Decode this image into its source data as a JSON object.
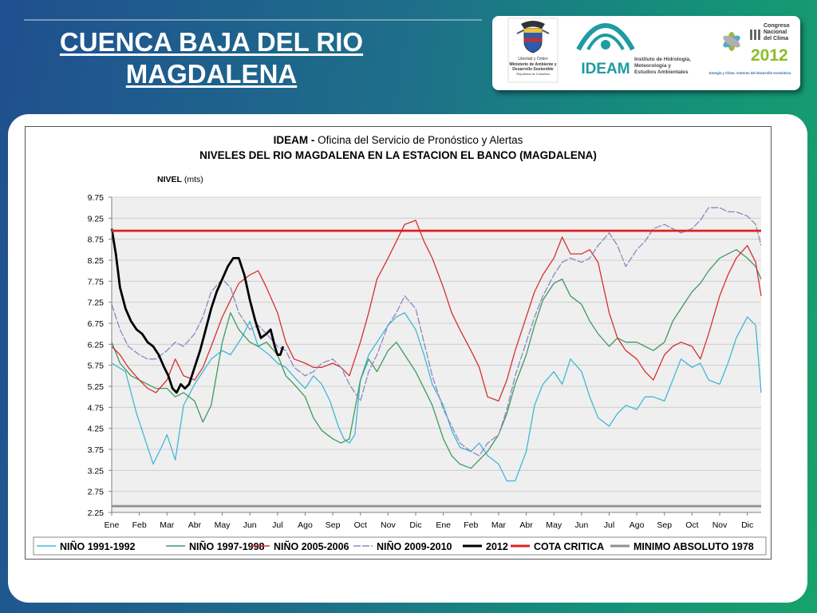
{
  "slide": {
    "title_line1": "CUENCA  BAJA  DEL RIO",
    "title_line2": "MAGDALENA"
  },
  "logos": {
    "colombia_caption": [
      "Libertad y Orden",
      "Ministerio de Ambiente y",
      "Desarrollo Sostenible",
      "República de Colombia"
    ],
    "ideam_word": "IDEAM",
    "ideam_caption": [
      "Instituto de Hidrología,",
      "Meteorología y",
      "Estudios Ambientales"
    ],
    "congress_title": [
      "Congreso",
      "Nacional",
      "del Clima"
    ],
    "congress_roman": "III",
    "congress_year": "2012",
    "congress_tagline": "Energía y Clima: motores del desarrollo económico"
  },
  "chart_data": {
    "type": "line",
    "title_bold": "IDEAM - ",
    "title_rest": "Oficina del Servicio de Pronóstico y Alertas",
    "subtitle": "NIVELES DEL RIO MAGDALENA EN LA ESTACION EL BANCO (MAGDALENA)",
    "ylabel_bold": "NIVEL",
    "ylabel_unit": " (mts)",
    "xlabel": "",
    "ylim": [
      2.25,
      9.75
    ],
    "yticks": [
      "9.75",
      "9.25",
      "8.75",
      "8.25",
      "7.75",
      "7.25",
      "6.75",
      "6.25",
      "5.75",
      "5.25",
      "4.75",
      "4.25",
      "3.75",
      "3.25",
      "2.75",
      "2.25"
    ],
    "x_unit": "month index (0 = Ene, year 1; 23 = Dic, year 2)",
    "xlim": [
      0,
      23.5
    ],
    "categories": [
      "Ene",
      "Feb",
      "Mar",
      "Abr",
      "May",
      "Jun",
      "Jul",
      "Ago",
      "Sep",
      "Oct",
      "Nov",
      "Dic",
      "Ene",
      "Feb",
      "Mar",
      "Abr",
      "May",
      "Jun",
      "Jul",
      "Ago",
      "Sep",
      "Oct",
      "Nov",
      "Dic"
    ],
    "grid": true,
    "legend_position": "bottom",
    "series": [
      {
        "name": "NIÑO 1991-1992",
        "color": "#3fb8d6",
        "width": 1.3,
        "dash": "",
        "x": [
          0,
          0.5,
          0.9,
          1.2,
          1.5,
          1.8,
          2.0,
          2.3,
          2.6,
          3.0,
          3.3,
          3.6,
          4.0,
          4.3,
          4.7,
          5.0,
          5.3,
          5.7,
          6.0,
          6.3,
          6.7,
          7.0,
          7.3,
          7.6,
          7.9,
          8.2,
          8.4,
          8.6,
          8.8,
          9.0,
          9.3,
          9.6,
          10.0,
          10.3,
          10.6,
          11.0,
          11.3,
          11.6,
          12.0,
          12.3,
          12.6,
          13.0,
          13.3,
          13.6,
          14.0,
          14.3,
          14.6,
          15.0,
          15.3,
          15.6,
          16.0,
          16.3,
          16.6,
          17.0,
          17.3,
          17.6,
          18.0,
          18.3,
          18.6,
          19.0,
          19.3,
          19.6,
          20.0,
          20.3,
          20.6,
          21.0,
          21.3,
          21.6,
          22.0,
          22.3,
          22.6,
          23.0,
          23.3,
          23.5
        ],
        "y": [
          5.8,
          5.6,
          4.6,
          4.0,
          3.4,
          3.8,
          4.1,
          3.5,
          4.8,
          5.3,
          5.6,
          5.9,
          6.1,
          6.0,
          6.4,
          6.8,
          6.2,
          6.0,
          5.8,
          5.7,
          5.4,
          5.2,
          5.5,
          5.3,
          4.9,
          4.3,
          4.0,
          3.9,
          4.1,
          5.4,
          6.0,
          6.3,
          6.7,
          6.9,
          7.0,
          6.6,
          6.0,
          5.3,
          4.8,
          4.2,
          3.8,
          3.7,
          3.9,
          3.6,
          3.4,
          3.0,
          3.0,
          3.7,
          4.8,
          5.3,
          5.6,
          5.3,
          5.9,
          5.6,
          5.0,
          4.5,
          4.3,
          4.6,
          4.8,
          4.7,
          5.0,
          5.0,
          4.9,
          5.4,
          5.9,
          5.7,
          5.8,
          5.4,
          5.3,
          5.8,
          6.4,
          6.9,
          6.7,
          5.1
        ]
      },
      {
        "name": "NIÑO 1997-1998",
        "color": "#3e9a62",
        "width": 1.3,
        "dash": "",
        "x": [
          0,
          0.3,
          0.7,
          1.0,
          1.3,
          1.6,
          2.0,
          2.3,
          2.6,
          3.0,
          3.3,
          3.6,
          4.0,
          4.3,
          4.6,
          5.0,
          5.3,
          5.6,
          6.0,
          6.3,
          6.6,
          7.0,
          7.3,
          7.6,
          8.0,
          8.3,
          8.6,
          9.0,
          9.3,
          9.6,
          10.0,
          10.3,
          10.6,
          11.0,
          11.3,
          11.6,
          12.0,
          12.3,
          12.6,
          13.0,
          13.3,
          13.6,
          14.0,
          14.3,
          14.6,
          15.0,
          15.3,
          15.6,
          16.0,
          16.3,
          16.6,
          17.0,
          17.3,
          17.6,
          18.0,
          18.3,
          18.6,
          19.0,
          19.3,
          19.6,
          20.0,
          20.3,
          20.6,
          21.0,
          21.3,
          21.6,
          22.0,
          22.3,
          22.6,
          23.0,
          23.3,
          23.5
        ],
        "y": [
          6.3,
          5.8,
          5.5,
          5.4,
          5.3,
          5.2,
          5.2,
          5.0,
          5.1,
          4.9,
          4.4,
          4.8,
          6.3,
          7.0,
          6.6,
          6.3,
          6.2,
          6.3,
          6.0,
          5.5,
          5.3,
          5.0,
          4.5,
          4.2,
          4.0,
          3.9,
          4.0,
          5.4,
          5.9,
          5.6,
          6.1,
          6.3,
          6.0,
          5.6,
          5.2,
          4.8,
          4.0,
          3.6,
          3.4,
          3.3,
          3.5,
          3.7,
          4.1,
          4.6,
          5.3,
          6.0,
          6.7,
          7.3,
          7.7,
          7.8,
          7.4,
          7.2,
          6.8,
          6.5,
          6.2,
          6.4,
          6.3,
          6.3,
          6.2,
          6.1,
          6.3,
          6.8,
          7.1,
          7.5,
          7.7,
          8.0,
          8.3,
          8.4,
          8.5,
          8.3,
          8.1,
          7.8
        ]
      },
      {
        "name": "NIÑO 2005-2006",
        "color": "#d63030",
        "width": 1.3,
        "dash": "",
        "x": [
          0,
          0.3,
          0.6,
          1.0,
          1.3,
          1.6,
          2.0,
          2.3,
          2.6,
          3.0,
          3.3,
          3.6,
          4.0,
          4.3,
          4.6,
          5.0,
          5.3,
          5.6,
          6.0,
          6.3,
          6.6,
          7.0,
          7.3,
          7.6,
          8.0,
          8.3,
          8.6,
          9.0,
          9.3,
          9.6,
          10.0,
          10.3,
          10.6,
          11.0,
          11.3,
          11.6,
          12.0,
          12.3,
          12.6,
          13.0,
          13.3,
          13.6,
          14.0,
          14.3,
          14.6,
          15.0,
          15.3,
          15.6,
          16.0,
          16.3,
          16.6,
          17.0,
          17.3,
          17.6,
          18.0,
          18.3,
          18.6,
          19.0,
          19.3,
          19.6,
          20.0,
          20.3,
          20.6,
          21.0,
          21.3,
          21.6,
          22.0,
          22.3,
          22.6,
          23.0,
          23.3,
          23.5
        ],
        "y": [
          6.2,
          6.0,
          5.7,
          5.4,
          5.2,
          5.1,
          5.4,
          5.9,
          5.5,
          5.4,
          5.7,
          6.2,
          6.9,
          7.3,
          7.7,
          7.9,
          8.0,
          7.6,
          7.0,
          6.3,
          5.9,
          5.8,
          5.7,
          5.7,
          5.8,
          5.7,
          5.5,
          6.3,
          7.0,
          7.8,
          8.3,
          8.7,
          9.1,
          9.2,
          8.7,
          8.3,
          7.6,
          7.0,
          6.6,
          6.1,
          5.7,
          5.0,
          4.9,
          5.4,
          6.1,
          6.9,
          7.5,
          7.9,
          8.3,
          8.8,
          8.4,
          8.4,
          8.5,
          8.2,
          7.0,
          6.4,
          6.1,
          5.9,
          5.6,
          5.4,
          6.0,
          6.2,
          6.3,
          6.2,
          5.9,
          6.5,
          7.4,
          7.9,
          8.3,
          8.6,
          8.2,
          7.4
        ]
      },
      {
        "name": "NIÑO 2009-2010",
        "color": "#8a88c2",
        "width": 1.3,
        "dash": "9,2",
        "x": [
          0,
          0.3,
          0.6,
          1.0,
          1.3,
          1.6,
          2.0,
          2.3,
          2.6,
          3.0,
          3.3,
          3.6,
          4.0,
          4.3,
          4.6,
          5.0,
          5.3,
          5.6,
          6.0,
          6.3,
          6.6,
          7.0,
          7.3,
          7.6,
          8.0,
          8.3,
          8.6,
          9.0,
          9.3,
          9.6,
          10.0,
          10.3,
          10.6,
          11.0,
          11.3,
          11.6,
          12.0,
          12.3,
          12.6,
          13.0,
          13.3,
          13.6,
          14.0,
          14.3,
          14.6,
          15.0,
          15.3,
          15.6,
          16.0,
          16.3,
          16.6,
          17.0,
          17.3,
          17.6,
          18.0,
          18.3,
          18.6,
          19.0,
          19.3,
          19.6,
          20.0,
          20.3,
          20.6,
          21.0,
          21.3,
          21.6,
          22.0,
          22.3,
          22.6,
          23.0,
          23.3,
          23.5
        ],
        "y": [
          7.2,
          6.6,
          6.2,
          6.0,
          5.9,
          5.9,
          6.1,
          6.3,
          6.2,
          6.5,
          6.9,
          7.5,
          7.8,
          7.6,
          7.0,
          6.6,
          6.7,
          6.5,
          6.2,
          6.1,
          5.7,
          5.5,
          5.6,
          5.8,
          5.9,
          5.7,
          5.3,
          4.9,
          5.6,
          6.0,
          6.7,
          7.0,
          7.4,
          7.1,
          6.3,
          5.5,
          4.7,
          4.3,
          3.9,
          3.7,
          3.6,
          3.9,
          4.1,
          4.7,
          5.5,
          6.3,
          6.9,
          7.4,
          7.9,
          8.2,
          8.3,
          8.2,
          8.3,
          8.6,
          8.9,
          8.6,
          8.1,
          8.5,
          8.7,
          9.0,
          9.1,
          9.0,
          8.9,
          9.0,
          9.2,
          9.5,
          9.5,
          9.4,
          9.4,
          9.3,
          9.1,
          8.6
        ]
      },
      {
        "name": "2012",
        "color": "#000000",
        "width": 2.8,
        "dash": "",
        "x": [
          0,
          0.15,
          0.3,
          0.5,
          0.7,
          0.9,
          1.1,
          1.3,
          1.5,
          1.7,
          1.9,
          2.05,
          2.2,
          2.35,
          2.5,
          2.65,
          2.8,
          3.0,
          3.2,
          3.4,
          3.6,
          3.8,
          4.0,
          4.2,
          4.4,
          4.6,
          4.8,
          5.0,
          5.2,
          5.4,
          5.6,
          5.75,
          5.9,
          6.0,
          6.1,
          6.2
        ],
        "y": [
          9.0,
          8.4,
          7.6,
          7.1,
          6.8,
          6.6,
          6.5,
          6.3,
          6.2,
          6.0,
          5.7,
          5.5,
          5.2,
          5.1,
          5.3,
          5.2,
          5.3,
          5.7,
          6.1,
          6.6,
          7.1,
          7.5,
          7.8,
          8.1,
          8.3,
          8.3,
          7.9,
          7.3,
          6.8,
          6.4,
          6.5,
          6.6,
          6.2,
          6.0,
          6.0,
          6.2
        ]
      },
      {
        "name": "COTA CRITICA",
        "color": "#e02020",
        "width": 2.8,
        "dash": "",
        "x": [
          0,
          23.5
        ],
        "y": [
          8.95,
          8.95
        ]
      },
      {
        "name": "MINIMO ABSOLUTO 1978",
        "color": "#8f8f8f",
        "width": 2.8,
        "dash": "",
        "x": [
          0,
          23.5
        ],
        "y": [
          2.4,
          2.4
        ]
      }
    ]
  }
}
